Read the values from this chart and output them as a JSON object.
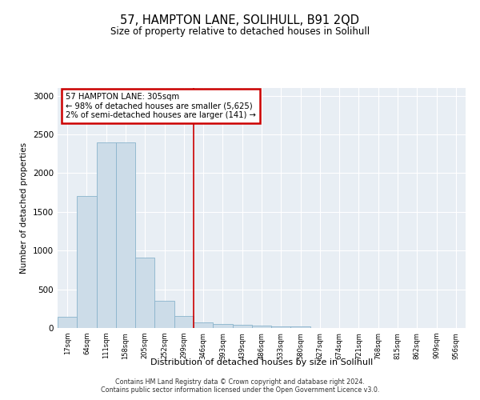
{
  "title": "57, HAMPTON LANE, SOLIHULL, B91 2QD",
  "subtitle": "Size of property relative to detached houses in Solihull",
  "xlabel": "Distribution of detached houses by size in Solihull",
  "ylabel": "Number of detached properties",
  "bar_heights": [
    140,
    1700,
    2400,
    2400,
    910,
    350,
    160,
    75,
    50,
    40,
    30,
    25,
    20,
    0,
    0,
    0,
    0,
    0,
    0,
    0,
    0
  ],
  "categories": [
    "17sqm",
    "64sqm",
    "111sqm",
    "158sqm",
    "205sqm",
    "252sqm",
    "299sqm",
    "346sqm",
    "393sqm",
    "439sqm",
    "486sqm",
    "533sqm",
    "580sqm",
    "627sqm",
    "674sqm",
    "721sqm",
    "768sqm",
    "815sqm",
    "862sqm",
    "909sqm",
    "956sqm"
  ],
  "bar_color": "#ccdce8",
  "bar_edge_color": "#8ab4cc",
  "vline_index": 6.5,
  "vline_color": "#cc0000",
  "annotation_text_line1": "57 HAMPTON LANE: 305sqm",
  "annotation_text_line2": "← 98% of detached houses are smaller (5,625)",
  "annotation_text_line3": "2% of semi-detached houses are larger (141) →",
  "annotation_box_color": "#cc0000",
  "ylim": [
    0,
    3100
  ],
  "yticks": [
    0,
    500,
    1000,
    1500,
    2000,
    2500,
    3000
  ],
  "background_color": "#e8eef4",
  "footer_line1": "Contains HM Land Registry data © Crown copyright and database right 2024.",
  "footer_line2": "Contains public sector information licensed under the Open Government Licence v3.0."
}
